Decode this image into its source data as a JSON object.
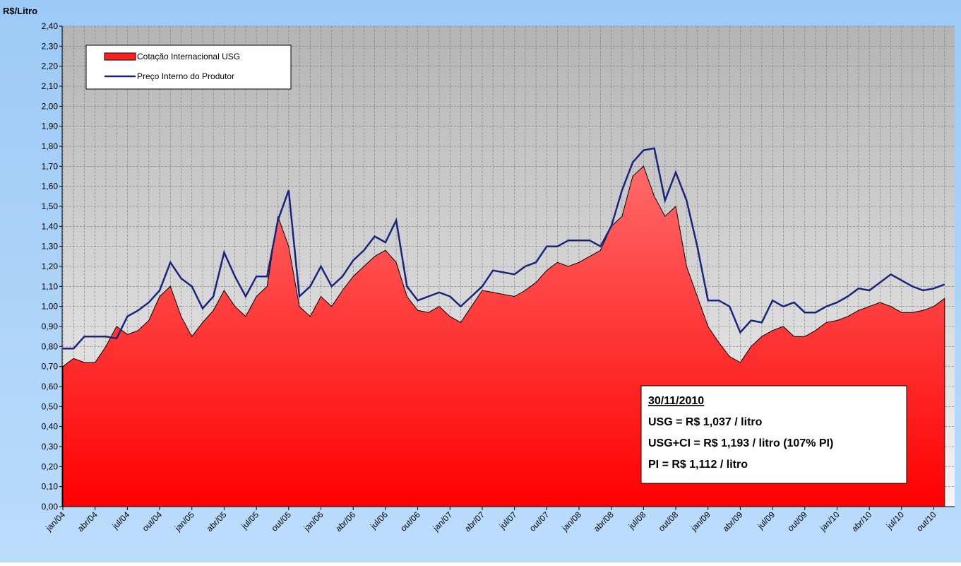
{
  "chart_data": {
    "type": "area-line",
    "y_label": "R$/Litro",
    "categories": [
      "jan/04",
      null,
      null,
      "abr/04",
      null,
      null,
      "jul/04",
      null,
      null,
      "out/04",
      null,
      null,
      "jan/05",
      null,
      null,
      "abr/05",
      null,
      null,
      "jul/05",
      null,
      null,
      "out/05",
      null,
      null,
      "jan/06",
      null,
      null,
      "abr/06",
      null,
      null,
      "jul/06",
      null,
      null,
      "out/06",
      null,
      null,
      "jan/07",
      null,
      null,
      "abr/07",
      null,
      null,
      "jul/07",
      null,
      null,
      "out/07",
      null,
      null,
      "jan/08",
      null,
      null,
      "abr/08",
      null,
      null,
      "jul/08",
      null,
      null,
      "out/08",
      null,
      null,
      "jan/09",
      null,
      null,
      "abr/09",
      null,
      null,
      "jul/09",
      null,
      null,
      "out/09",
      null,
      null,
      "jan/10",
      null,
      null,
      "abr/10",
      null,
      null,
      "jul/10",
      null,
      null,
      "out/10",
      null
    ],
    "series": [
      {
        "name": "Cotação Internacional USG",
        "kind": "area",
        "color": "#ff2020",
        "values": [
          0.7,
          0.74,
          0.72,
          0.72,
          0.8,
          0.9,
          0.86,
          0.88,
          0.93,
          1.05,
          1.1,
          0.95,
          0.85,
          0.92,
          0.98,
          1.08,
          1.0,
          0.95,
          1.05,
          1.1,
          1.45,
          1.3,
          1.0,
          0.95,
          1.05,
          1.0,
          1.08,
          1.15,
          1.2,
          1.25,
          1.28,
          1.22,
          1.05,
          0.98,
          0.97,
          1.0,
          0.95,
          0.92,
          1.0,
          1.08,
          1.07,
          1.06,
          1.05,
          1.08,
          1.12,
          1.18,
          1.22,
          1.2,
          1.22,
          1.25,
          1.28,
          1.4,
          1.45,
          1.65,
          1.7,
          1.55,
          1.45,
          1.5,
          1.2,
          1.05,
          0.9,
          0.82,
          0.75,
          0.72,
          0.8,
          0.85,
          0.88,
          0.9,
          0.85,
          0.85,
          0.88,
          0.92,
          0.93,
          0.95,
          0.98,
          1.0,
          1.02,
          1.0,
          0.97,
          0.97,
          0.98,
          1.0,
          1.04
        ]
      },
      {
        "name": "Preço Interno do Produtor",
        "kind": "line",
        "color": "#1a237e",
        "values": [
          0.79,
          0.79,
          0.85,
          0.85,
          0.85,
          0.84,
          0.95,
          0.98,
          1.02,
          1.08,
          1.22,
          1.14,
          1.1,
          0.99,
          1.05,
          1.27,
          1.15,
          1.05,
          1.15,
          1.15,
          1.43,
          1.58,
          1.05,
          1.1,
          1.2,
          1.1,
          1.15,
          1.23,
          1.28,
          1.35,
          1.32,
          1.43,
          1.1,
          1.03,
          1.05,
          1.07,
          1.05,
          1.0,
          1.05,
          1.1,
          1.18,
          1.17,
          1.16,
          1.2,
          1.22,
          1.3,
          1.3,
          1.33,
          1.33,
          1.33,
          1.3,
          1.4,
          1.58,
          1.72,
          1.78,
          1.79,
          1.53,
          1.67,
          1.53,
          1.3,
          1.03,
          1.03,
          1.0,
          0.87,
          0.93,
          0.92,
          1.03,
          1.0,
          1.02,
          0.97,
          0.97,
          1.0,
          1.02,
          1.05,
          1.09,
          1.08,
          1.12,
          1.16,
          1.13,
          1.1,
          1.08,
          1.09,
          1.11
        ]
      }
    ],
    "ylim": [
      0,
      2.4
    ],
    "yticks": [
      {
        "value": 0,
        "label": "0,00"
      },
      {
        "value": 0.1,
        "label": "0,10"
      },
      {
        "value": 0.2,
        "label": "0,20"
      },
      {
        "value": 0.3,
        "label": "0,30"
      },
      {
        "value": 0.4,
        "label": "0,40"
      },
      {
        "value": 0.5,
        "label": "0,50"
      },
      {
        "value": 0.6,
        "label": "0,60"
      },
      {
        "value": 0.7,
        "label": "0,70"
      },
      {
        "value": 0.8,
        "label": "0,80"
      },
      {
        "value": 0.9,
        "label": "0,90"
      },
      {
        "value": 1.0,
        "label": "1,00"
      },
      {
        "value": 1.1,
        "label": "1,10"
      },
      {
        "value": 1.2,
        "label": "1,20"
      },
      {
        "value": 1.3,
        "label": "1,30"
      },
      {
        "value": 1.4,
        "label": "1,40"
      },
      {
        "value": 1.5,
        "label": "1,50"
      },
      {
        "value": 1.6,
        "label": "1,60"
      },
      {
        "value": 1.7,
        "label": "1,70"
      },
      {
        "value": 1.8,
        "label": "1,80"
      },
      {
        "value": 1.9,
        "label": "1,90"
      },
      {
        "value": 2.0,
        "label": "2,00"
      },
      {
        "value": 2.1,
        "label": "2,10"
      },
      {
        "value": 2.2,
        "label": "2,20"
      },
      {
        "value": 2.3,
        "label": "2,30"
      },
      {
        "value": 2.4,
        "label": "2,40"
      }
    ],
    "grid": true,
    "legend": "top-left",
    "annotations": [
      "30/11/2010",
      "USG = R$ 1,037 / litro",
      "USG+CI = R$ 1,193 / litro (107% PI)",
      "PI = R$ 1,112 / litro"
    ]
  }
}
